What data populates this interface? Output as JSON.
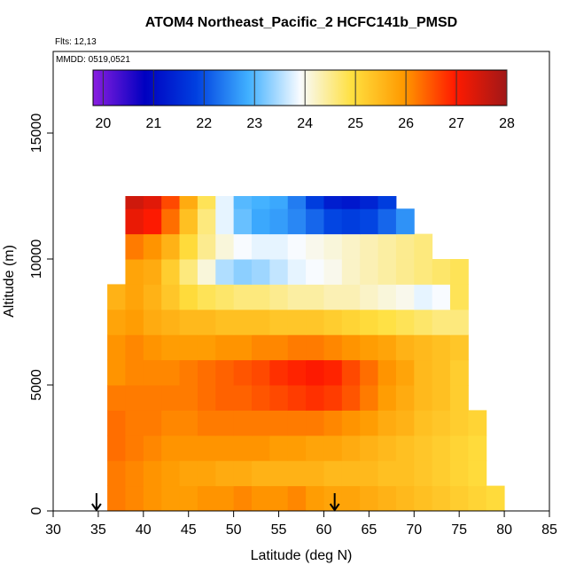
{
  "chart_data": {
    "type": "heatmap",
    "title": "ATOM4 Northeast_Pacific_2 HCFC141b_PMSD",
    "annotations": [
      "Flts: 12,13",
      "MMDD: 0519,0521"
    ],
    "x_label": "Latitude (deg N)",
    "y_label": "Altitude (m)",
    "xlim": [
      30,
      85
    ],
    "xticks": [
      30,
      35,
      40,
      45,
      50,
      55,
      60,
      65,
      70,
      75,
      80,
      85
    ],
    "ylim": [
      0,
      18240
    ],
    "yticks": [
      0,
      5000,
      10000,
      15000
    ],
    "zlim": [
      19.8,
      28
    ],
    "zticks": [
      20,
      21,
      22,
      23,
      24,
      25,
      26,
      27,
      28
    ],
    "colors": [
      "#8a1ee0",
      "#0000c0",
      "#0040e0",
      "#40b0ff",
      "#f8fbff",
      "#ffe040",
      "#ff9a00",
      "#ff1a00",
      "#a01818"
    ],
    "arrow_x": [
      34.8,
      61.2
    ],
    "x_edges": [
      36,
      38,
      40,
      42,
      44,
      46,
      48,
      50,
      52,
      54,
      56,
      58,
      60,
      62,
      64,
      66,
      68,
      70,
      72,
      74,
      76,
      78,
      80
    ],
    "y_edges": [
      0,
      1000,
      2000,
      3000,
      4000,
      5000,
      6000,
      7000,
      8000,
      9000,
      10000,
      11000,
      12000,
      12500
    ],
    "z": [
      [
        26.2,
        26.1,
        26.0,
        25.9,
        25.9,
        26.0,
        26.0,
        26.1,
        26.0,
        26.0,
        26.1,
        25.9,
        25.8,
        25.8,
        25.7,
        25.6,
        25.5,
        25.4,
        25.3,
        25.2,
        25.1,
        25.0
      ],
      [
        26.2,
        26.1,
        26.0,
        25.9,
        25.8,
        25.8,
        25.7,
        25.7,
        25.6,
        25.6,
        25.6,
        25.6,
        25.5,
        25.5,
        25.5,
        25.4,
        25.4,
        25.3,
        25.2,
        25.1,
        25.0,
        null
      ],
      [
        26.3,
        26.2,
        26.1,
        26.0,
        26.0,
        26.0,
        26.0,
        26.0,
        26.0,
        25.9,
        25.9,
        25.8,
        25.8,
        25.7,
        25.6,
        25.5,
        25.4,
        25.3,
        25.2,
        25.1,
        25.0,
        null
      ],
      [
        26.3,
        26.2,
        26.2,
        26.1,
        26.1,
        26.2,
        26.2,
        26.2,
        26.2,
        26.2,
        26.2,
        26.2,
        26.1,
        26.0,
        25.9,
        25.7,
        25.6,
        25.4,
        25.3,
        25.2,
        25.1,
        null
      ],
      [
        26.2,
        26.2,
        26.2,
        26.2,
        26.2,
        26.3,
        26.4,
        26.4,
        26.5,
        26.6,
        26.7,
        26.8,
        26.7,
        26.5,
        26.2,
        25.9,
        25.7,
        25.5,
        25.4,
        25.2,
        null,
        null
      ],
      [
        26.0,
        26.1,
        26.1,
        26.1,
        26.2,
        26.3,
        26.4,
        26.5,
        26.6,
        26.8,
        26.9,
        27.0,
        26.9,
        26.6,
        26.3,
        26.0,
        25.8,
        25.5,
        25.4,
        25.2,
        null,
        null
      ],
      [
        26.0,
        26.1,
        26.0,
        25.9,
        25.9,
        25.9,
        26.0,
        26.0,
        26.1,
        26.1,
        26.2,
        26.2,
        26.1,
        26.0,
        25.9,
        25.8,
        25.6,
        25.5,
        25.4,
        25.3,
        null,
        null
      ],
      [
        25.8,
        25.9,
        25.7,
        25.6,
        25.5,
        25.5,
        25.4,
        25.4,
        25.4,
        25.3,
        25.3,
        25.3,
        25.2,
        25.1,
        25.0,
        24.9,
        24.8,
        24.7,
        24.6,
        24.6,
        null,
        null
      ],
      [
        25.6,
        25.8,
        25.6,
        25.3,
        25.0,
        24.8,
        24.7,
        24.6,
        24.6,
        24.5,
        24.4,
        24.4,
        24.3,
        24.3,
        24.2,
        24.1,
        24.0,
        23.8,
        23.9,
        24.8,
        null,
        null
      ],
      [
        null,
        25.8,
        25.7,
        25.2,
        24.6,
        24.1,
        23.5,
        23.3,
        23.4,
        23.6,
        23.8,
        23.9,
        24.0,
        24.2,
        24.3,
        24.4,
        24.5,
        24.6,
        24.7,
        24.8,
        null,
        null
      ],
      [
        null,
        26.2,
        26.0,
        25.6,
        25.0,
        24.5,
        24.1,
        23.9,
        23.8,
        23.8,
        23.9,
        24.0,
        24.1,
        24.2,
        24.3,
        24.4,
        24.5,
        24.6,
        null,
        null,
        null,
        null
      ],
      [
        null,
        27.2,
        27.0,
        26.3,
        25.4,
        24.6,
        23.8,
        23.1,
        22.8,
        22.7,
        22.5,
        22.2,
        21.9,
        21.8,
        21.9,
        22.2,
        22.6,
        null,
        null,
        null,
        null,
        null
      ],
      [
        null,
        27.5,
        27.3,
        26.6,
        25.7,
        24.8,
        23.8,
        23.0,
        22.9,
        22.8,
        22.4,
        21.8,
        21.3,
        21.2,
        21.4,
        21.8,
        null,
        null,
        null,
        null,
        null,
        null
      ]
    ]
  }
}
